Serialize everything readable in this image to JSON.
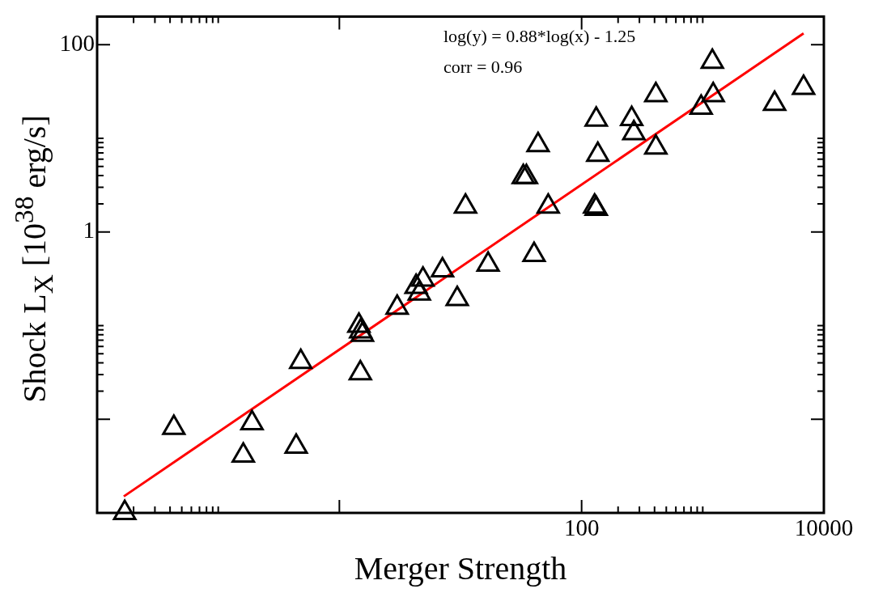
{
  "chart_data": {
    "type": "scatter",
    "xlabel": "Merger Strength",
    "ylabel": "Shock L$_{X}$ [10$^{38}$ erg/s]",
    "annotations": [
      "log(y) = 0.88*log(x) - 1.25",
      "corr = 0.96"
    ],
    "log": "xy",
    "legend": false,
    "grid": false,
    "xlim": [
      0.01,
      10000
    ],
    "ylim": [
      0.001,
      200
    ],
    "xticks": [
      {
        "value": 0.01,
        "label": null
      },
      {
        "value": 0.02,
        "label": null
      },
      {
        "value": 0.03,
        "label": null
      },
      {
        "value": 0.04,
        "label": null
      },
      {
        "value": 0.05,
        "label": null
      },
      {
        "value": 0.06,
        "label": null
      },
      {
        "value": 0.07,
        "label": null
      },
      {
        "value": 0.08,
        "label": null
      },
      {
        "value": 0.09,
        "label": null
      },
      {
        "value": 0.1,
        "label": null
      },
      {
        "value": 1,
        "label": null
      },
      100,
      {
        "value": 200,
        "label": null
      },
      {
        "value": 300,
        "label": null
      },
      {
        "value": 400,
        "label": null
      },
      {
        "value": 500,
        "label": null
      },
      {
        "value": 600,
        "label": null
      },
      {
        "value": 700,
        "label": null
      },
      {
        "value": 800,
        "label": null
      },
      {
        "value": 900,
        "label": null
      },
      {
        "value": 1000,
        "label": null
      },
      10000
    ],
    "yticks": [
      {
        "value": 0.01,
        "label": null
      },
      {
        "value": 0.02,
        "label": null
      },
      {
        "value": 0.03,
        "label": null
      },
      {
        "value": 0.04,
        "label": null
      },
      {
        "value": 0.05,
        "label": null
      },
      {
        "value": 0.06,
        "label": null
      },
      {
        "value": 0.07,
        "label": null
      },
      {
        "value": 0.08,
        "label": null
      },
      {
        "value": 0.09,
        "label": null
      },
      {
        "value": 0.1,
        "label": null
      },
      1,
      {
        "value": 2,
        "label": null
      },
      {
        "value": 3,
        "label": null
      },
      {
        "value": 4,
        "label": null
      },
      {
        "value": 5,
        "label": null
      },
      {
        "value": 6,
        "label": null
      },
      {
        "value": 7,
        "label": null
      },
      {
        "value": 8,
        "label": null
      },
      {
        "value": 9,
        "label": null
      },
      {
        "value": 10,
        "label": null
      },
      100
    ],
    "series": [
      {
        "type": "scatter",
        "marker": "triangle",
        "color": "#000000",
        "x": [
          0.0169,
          0.043,
          0.161,
          0.19,
          0.44,
          0.48,
          1.49,
          1.45,
          1.5,
          1.55,
          3.0,
          4.3,
          4.57,
          4.9,
          7.1,
          9.4,
          11,
          16.9,
          40.5,
          33,
          35,
          43.7,
          53,
          132,
          136,
          128,
          132,
          259,
          270,
          410,
          410,
          970,
          1200,
          1220,
          3920,
          6800
        ],
        "values": [
          0.001,
          0.0081,
          0.0041,
          0.0091,
          0.0051,
          0.041,
          0.031,
          0.1,
          0.087,
          0.08,
          0.156,
          0.26,
          0.22,
          0.31,
          0.39,
          0.193,
          1.87,
          0.45,
          0.57,
          3.87,
          3.87,
          8.5,
          1.87,
          15.9,
          6.7,
          1.87,
          1.77,
          16.1,
          11.4,
          29,
          8.0,
          21.3,
          66,
          29,
          23.4,
          34.7
        ]
      },
      {
        "type": "line",
        "marker": "none",
        "line_style": "solid",
        "color": "#ff0000",
        "x": [
          0.0166,
          6800
        ],
        "values": [
          0.0015,
          132
        ]
      }
    ]
  }
}
